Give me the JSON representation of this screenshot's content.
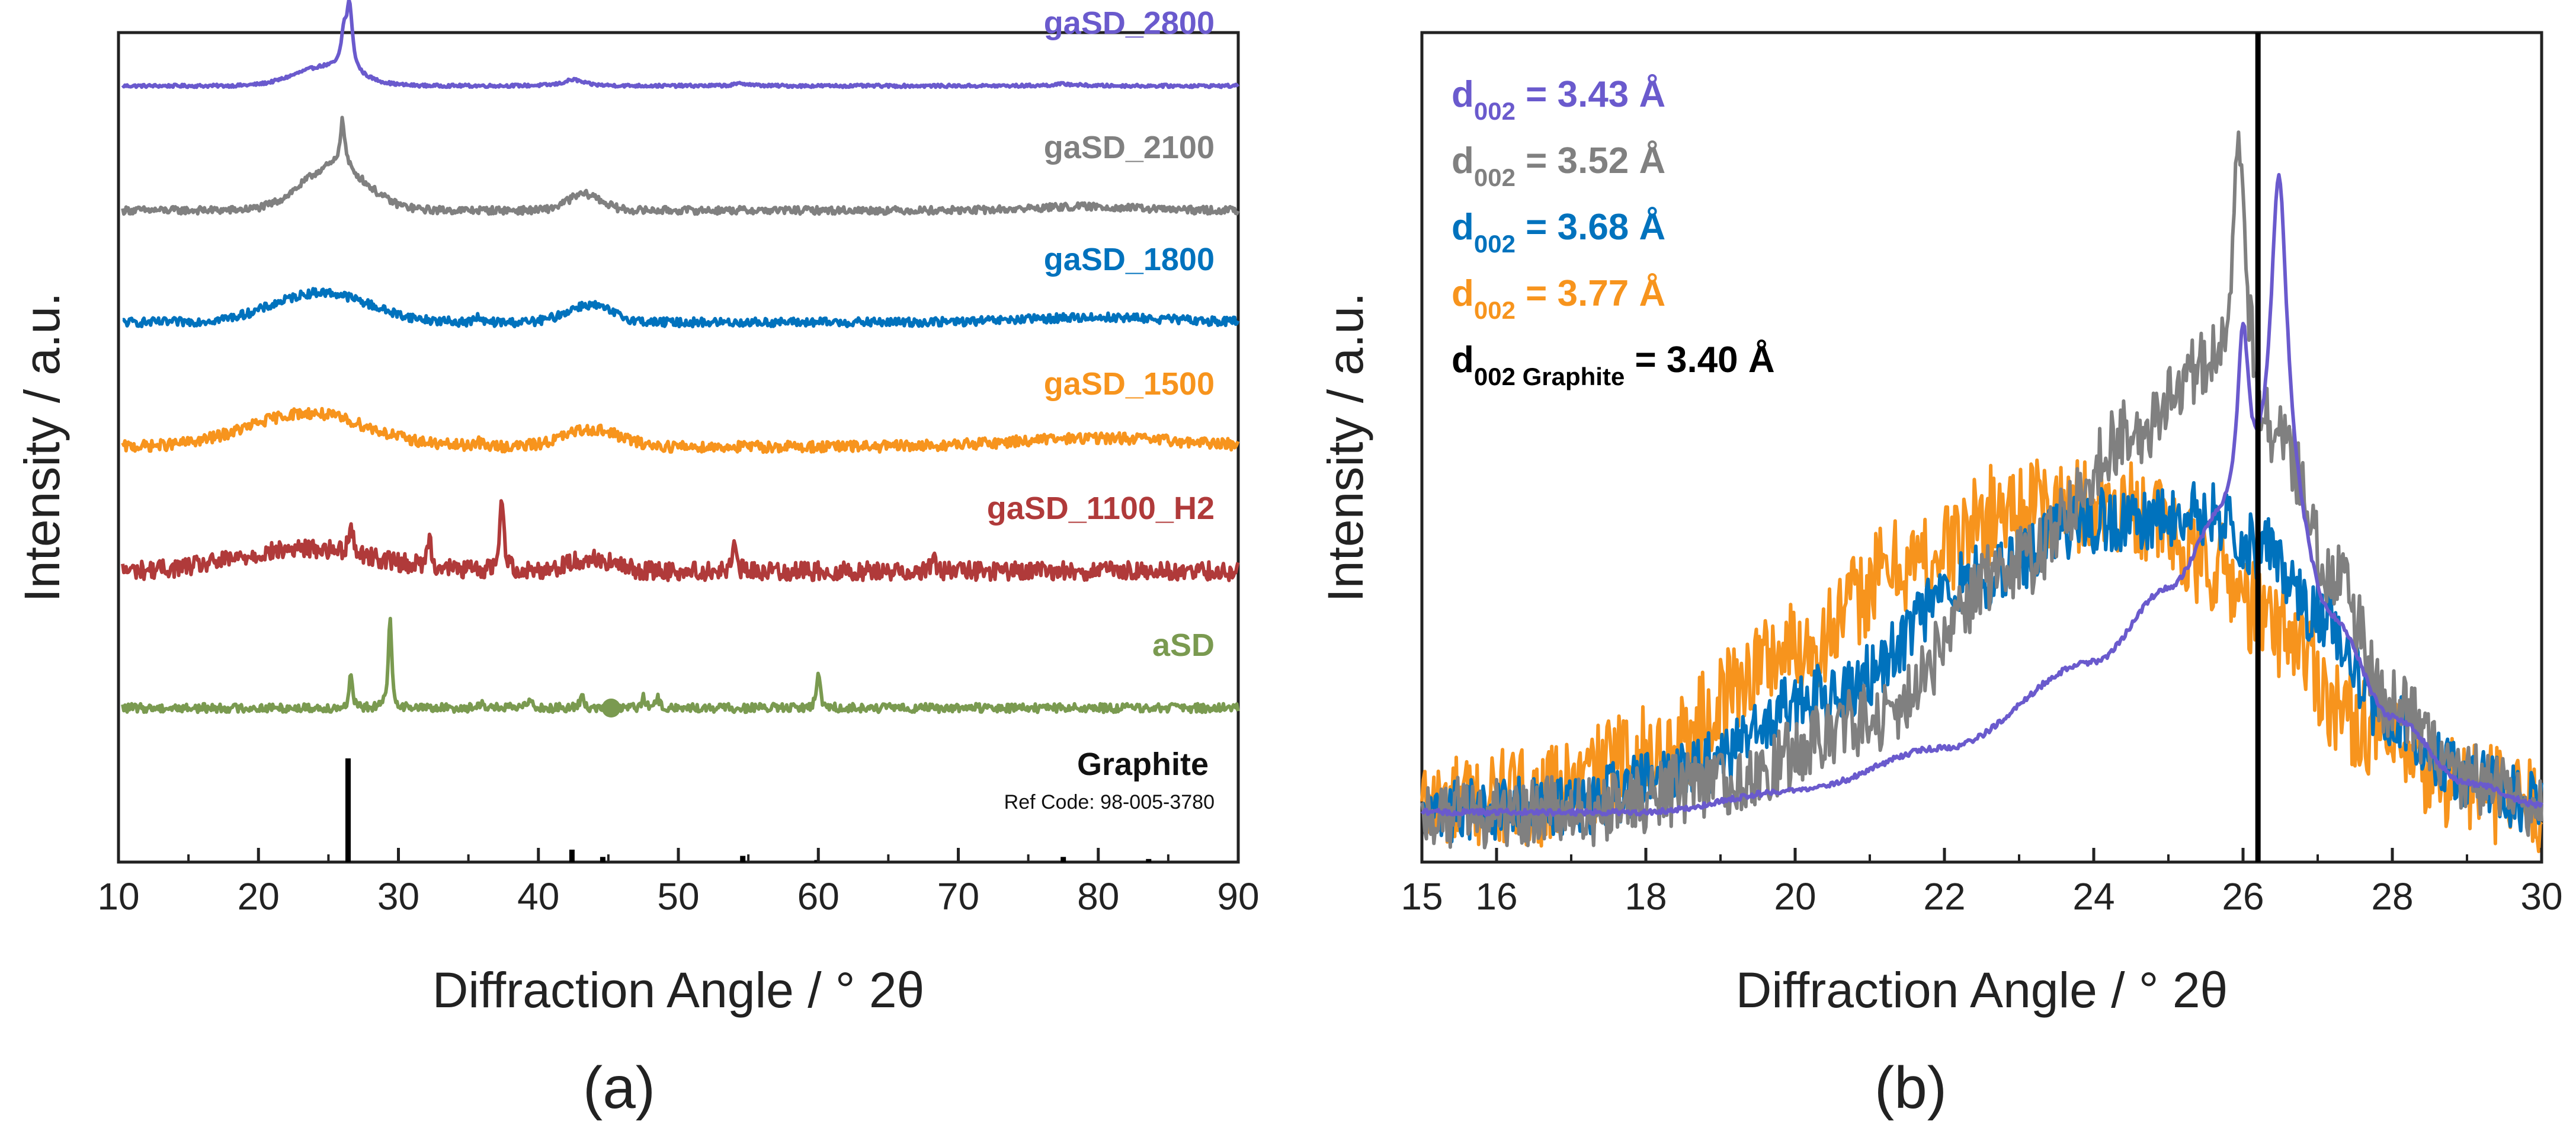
{
  "chart_data": [
    {
      "panel_label": "(a)",
      "type": "line",
      "title": "",
      "xlabel": "Diffraction Angle / ° 2θ",
      "ylabel": "Intensity / a.u.",
      "xlim": [
        10,
        90
      ],
      "xticks": [
        "10",
        "20",
        "30",
        "40",
        "50",
        "60",
        "70",
        "80",
        "90"
      ],
      "yticks_shown": false,
      "series": [
        {
          "name": "gaSD_2800",
          "color": "#6A5ACD",
          "offset": 5.0,
          "baseline": 0.0,
          "noise": 0.012,
          "peaks": [
            {
              "x": 24.8,
              "h": 0.15,
              "w": 2.2
            },
            {
              "x": 26.1,
              "h": 0.25,
              "w": 0.22
            },
            {
              "x": 26.5,
              "h": 0.52,
              "w": 0.25
            },
            {
              "x": 42.5,
              "h": 0.05,
              "w": 0.8
            },
            {
              "x": 54.6,
              "h": 0.02,
              "w": 0.6
            },
            {
              "x": 77.6,
              "h": 0.015,
              "w": 1.0
            }
          ]
        },
        {
          "name": "gaSD_2100",
          "color": "#808080",
          "offset": 4.0,
          "baseline": 0.0,
          "noise": 0.03,
          "peaks": [
            {
              "x": 25.4,
              "h": 0.35,
              "w": 2.3
            },
            {
              "x": 26.0,
              "h": 0.38,
              "w": 0.22
            },
            {
              "x": 43.3,
              "h": 0.13,
              "w": 1.2
            },
            {
              "x": 79,
              "h": 0.03,
              "w": 3.5
            }
          ]
        },
        {
          "name": "gaSD_1800",
          "color": "#0072BD",
          "offset": 3.1,
          "baseline": 0.0,
          "noise": 0.035,
          "peaks": [
            {
              "x": 24.5,
              "h": 0.24,
              "w": 3.4
            },
            {
              "x": 35.6,
              "h": 0.05,
              "w": 0.15
            },
            {
              "x": 43.6,
              "h": 0.14,
              "w": 1.6
            },
            {
              "x": 80,
              "h": 0.04,
              "w": 5
            }
          ]
        },
        {
          "name": "gaSD_1500",
          "color": "#F7941D",
          "offset": 2.1,
          "baseline": 0.0,
          "noise": 0.045,
          "peaks": [
            {
              "x": 23.5,
              "h": 0.27,
              "w": 4.2
            },
            {
              "x": 43.8,
              "h": 0.14,
              "w": 2.0
            },
            {
              "x": 35.6,
              "h": 0.04,
              "w": 0.3
            },
            {
              "x": 80,
              "h": 0.07,
              "w": 6
            }
          ]
        },
        {
          "name": "gaSD_1100_H2",
          "color": "#B03A3A",
          "offset": 1.1,
          "baseline": 0.0,
          "noise": 0.075,
          "peaks": [
            {
              "x": 23.5,
              "h": 0.18,
              "w": 4.8
            },
            {
              "x": 26.6,
              "h": 0.28,
              "w": 0.15
            },
            {
              "x": 32.2,
              "h": 0.26,
              "w": 0.15
            },
            {
              "x": 37.4,
              "h": 0.58,
              "w": 0.18
            },
            {
              "x": 43.7,
              "h": 0.1,
              "w": 1.6
            },
            {
              "x": 54.0,
              "h": 0.2,
              "w": 0.15
            },
            {
              "x": 68.2,
              "h": 0.13,
              "w": 0.15
            }
          ]
        },
        {
          "name": "aSD",
          "color": "#7A9A50",
          "offset": 0.0,
          "baseline": 0.0,
          "noise": 0.035,
          "peaks": [
            {
              "x": 26.6,
              "h": 0.28,
              "w": 0.12
            },
            {
              "x": 29.4,
              "h": 0.72,
              "w": 0.14
            },
            {
              "x": 36.0,
              "h": 0.06,
              "w": 0.15
            },
            {
              "x": 39.4,
              "h": 0.1,
              "w": 0.15
            },
            {
              "x": 43.1,
              "h": 0.1,
              "w": 0.15
            },
            {
              "x": 47.5,
              "h": 0.08,
              "w": 0.15
            },
            {
              "x": 48.5,
              "h": 0.08,
              "w": 0.15
            },
            {
              "x": 60.0,
              "h": 0.3,
              "w": 0.14
            }
          ]
        }
      ],
      "reference": {
        "name": "Graphite",
        "ref_code": "Ref Code: 98-005-3780",
        "color": "#000000",
        "sticks": [
          {
            "x": 26.4,
            "h": 1.0
          },
          {
            "x": 42.4,
            "h": 0.12
          },
          {
            "x": 44.6,
            "h": 0.05
          },
          {
            "x": 54.6,
            "h": 0.06
          },
          {
            "x": 59.9,
            "h": 0.02
          },
          {
            "x": 77.5,
            "h": 0.05
          },
          {
            "x": 83.6,
            "h": 0.03
          }
        ]
      },
      "marker": {
        "series": "aSD",
        "x": 45.2
      }
    },
    {
      "panel_label": "(b)",
      "type": "line",
      "title": "",
      "xlabel": "Diffraction Angle / ° 2θ",
      "ylabel": "Intensity / a.u.",
      "xlim": [
        15,
        30
      ],
      "xticks": [
        "16",
        "18",
        "20",
        "22",
        "24",
        "26",
        "28",
        "30"
      ],
      "yticks_shown": false,
      "reference_line": {
        "x": 26.2,
        "color": "#000000"
      },
      "annotations": [
        {
          "main": "d",
          "sub": "002",
          "value": " = 3.43 Å",
          "color": "#6A5ACD"
        },
        {
          "main": "d",
          "sub": "002",
          "value": " = 3.52 Å",
          "color": "#808080"
        },
        {
          "main": "d",
          "sub": "002",
          "value": " = 3.68 Å",
          "color": "#0072BD"
        },
        {
          "main": "d",
          "sub": "002",
          "value": " = 3.77 Å",
          "color": "#F7941D"
        },
        {
          "main": "d",
          "sub": "002 Graphite",
          "value": " = 3.40 Å",
          "color": "#000000"
        }
      ],
      "series": [
        {
          "name": "gaSD_1500",
          "color": "#F7941D",
          "noise": 0.07,
          "shape": [
            {
              "x": 15,
              "y": 0.08
            },
            {
              "x": 16.5,
              "y": 0.09
            },
            {
              "x": 18,
              "y": 0.15
            },
            {
              "x": 20,
              "y": 0.3
            },
            {
              "x": 21.5,
              "y": 0.42
            },
            {
              "x": 23,
              "y": 0.5
            },
            {
              "x": 24.5,
              "y": 0.5
            },
            {
              "x": 25.5,
              "y": 0.42
            },
            {
              "x": 26.5,
              "y": 0.33
            },
            {
              "x": 27.5,
              "y": 0.2
            },
            {
              "x": 28.5,
              "y": 0.12
            },
            {
              "x": 30,
              "y": 0.08
            }
          ]
        },
        {
          "name": "gaSD_1800",
          "color": "#0072BD",
          "noise": 0.045,
          "shape": [
            {
              "x": 15,
              "y": 0.07
            },
            {
              "x": 17,
              "y": 0.08
            },
            {
              "x": 18.5,
              "y": 0.13
            },
            {
              "x": 20.5,
              "y": 0.24
            },
            {
              "x": 22.5,
              "y": 0.4
            },
            {
              "x": 24,
              "y": 0.48
            },
            {
              "x": 25.5,
              "y": 0.49
            },
            {
              "x": 26.3,
              "y": 0.44
            },
            {
              "x": 27,
              "y": 0.35
            },
            {
              "x": 28,
              "y": 0.2
            },
            {
              "x": 29,
              "y": 0.12
            },
            {
              "x": 30,
              "y": 0.08
            }
          ]
        },
        {
          "name": "gaSD_2100",
          "color": "#808080",
          "noise": 0.05,
          "shape": [
            {
              "x": 15,
              "y": 0.07
            },
            {
              "x": 17,
              "y": 0.07
            },
            {
              "x": 19,
              "y": 0.11
            },
            {
              "x": 21,
              "y": 0.2
            },
            {
              "x": 23,
              "y": 0.42
            },
            {
              "x": 24.5,
              "y": 0.6
            },
            {
              "x": 25.5,
              "y": 0.68
            },
            {
              "x": 26.5,
              "y": 0.58
            },
            {
              "x": 27.2,
              "y": 0.4
            },
            {
              "x": 28,
              "y": 0.22
            },
            {
              "x": 29,
              "y": 0.12
            },
            {
              "x": 30,
              "y": 0.07
            }
          ],
          "peaks": [
            {
              "x": 25.95,
              "h": 0.36,
              "w": 0.12
            }
          ]
        },
        {
          "name": "gaSD_2800",
          "color": "#6A5ACD",
          "noise": 0.004,
          "shape": [
            {
              "x": 15,
              "y": 0.07
            },
            {
              "x": 18,
              "y": 0.07
            },
            {
              "x": 20,
              "y": 0.1
            },
            {
              "x": 22,
              "y": 0.16
            },
            {
              "x": 24,
              "y": 0.28
            },
            {
              "x": 25,
              "y": 0.38
            },
            {
              "x": 25.7,
              "y": 0.47
            },
            {
              "x": 26.5,
              "y": 0.5
            },
            {
              "x": 27.2,
              "y": 0.33
            },
            {
              "x": 28,
              "y": 0.2
            },
            {
              "x": 29,
              "y": 0.11
            },
            {
              "x": 30,
              "y": 0.08
            }
          ],
          "peaks": [
            {
              "x": 26.0,
              "h": 0.25,
              "w": 0.09
            },
            {
              "x": 26.48,
              "h": 0.46,
              "w": 0.13
            }
          ]
        }
      ]
    }
  ]
}
